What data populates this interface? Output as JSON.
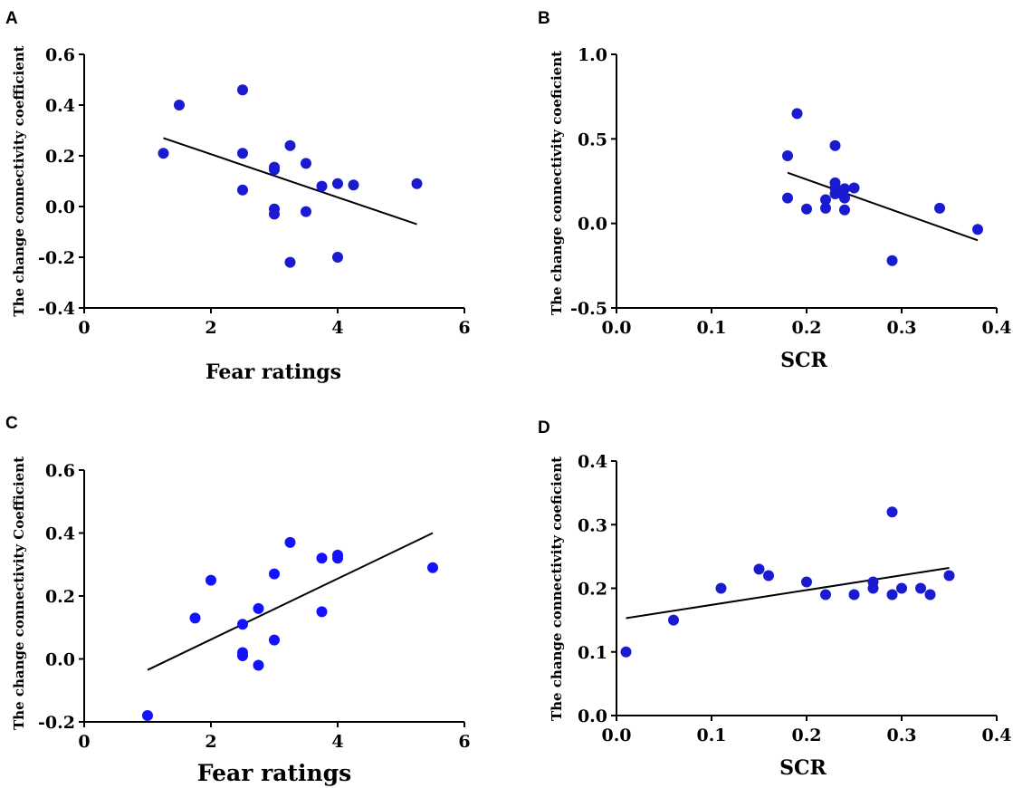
{
  "chart_data": [
    {
      "panel": "A",
      "type": "scatter",
      "xlabel": "Fear ratings",
      "ylabel": "The change connectivity coefficient",
      "xlim": [
        0,
        6
      ],
      "ylim": [
        -0.4,
        0.6
      ],
      "xticks": [
        "0",
        "2",
        "4",
        "6"
      ],
      "yticks": [
        "-0.4",
        "-0.2",
        "0.0",
        "0.2",
        "0.4",
        "0.6"
      ],
      "points": [
        {
          "x": 1.25,
          "y": 0.21
        },
        {
          "x": 1.5,
          "y": 0.4
        },
        {
          "x": 2.5,
          "y": 0.46
        },
        {
          "x": 2.5,
          "y": 0.21
        },
        {
          "x": 2.5,
          "y": 0.065
        },
        {
          "x": 3.0,
          "y": 0.155
        },
        {
          "x": 3.0,
          "y": 0.145
        },
        {
          "x": 3.0,
          "y": -0.01
        },
        {
          "x": 3.0,
          "y": -0.03
        },
        {
          "x": 3.25,
          "y": 0.24
        },
        {
          "x": 3.25,
          "y": -0.22
        },
        {
          "x": 3.5,
          "y": 0.17
        },
        {
          "x": 3.5,
          "y": -0.02
        },
        {
          "x": 3.75,
          "y": 0.08
        },
        {
          "x": 4.0,
          "y": 0.09
        },
        {
          "x": 4.0,
          "y": -0.2
        },
        {
          "x": 4.25,
          "y": 0.085
        },
        {
          "x": 5.25,
          "y": 0.09
        }
      ],
      "fit_line": [
        {
          "x": 1.25,
          "y": 0.27
        },
        {
          "x": 5.25,
          "y": -0.07
        }
      ],
      "point_color": "#1a1ad0"
    },
    {
      "panel": "B",
      "type": "scatter",
      "xlabel": "SCR",
      "ylabel": "The change connectivity coeficient",
      "xlim": [
        0,
        0.4
      ],
      "ylim": [
        -0.5,
        1.0
      ],
      "xticks": [
        "0.0",
        "0.1",
        "0.2",
        "0.3",
        "0.4"
      ],
      "yticks": [
        "-0.5",
        "0.0",
        "0.5",
        "1.0"
      ],
      "points": [
        {
          "x": 0.18,
          "y": 0.4
        },
        {
          "x": 0.18,
          "y": 0.15
        },
        {
          "x": 0.19,
          "y": 0.65
        },
        {
          "x": 0.2,
          "y": 0.085
        },
        {
          "x": 0.22,
          "y": 0.14
        },
        {
          "x": 0.22,
          "y": 0.09
        },
        {
          "x": 0.23,
          "y": 0.46
        },
        {
          "x": 0.23,
          "y": 0.24
        },
        {
          "x": 0.23,
          "y": 0.21
        },
        {
          "x": 0.23,
          "y": 0.175
        },
        {
          "x": 0.235,
          "y": 0.18
        },
        {
          "x": 0.24,
          "y": 0.205
        },
        {
          "x": 0.24,
          "y": 0.15
        },
        {
          "x": 0.24,
          "y": 0.08
        },
        {
          "x": 0.25,
          "y": 0.21
        },
        {
          "x": 0.29,
          "y": -0.22
        },
        {
          "x": 0.34,
          "y": 0.09
        },
        {
          "x": 0.38,
          "y": -0.035
        }
      ],
      "fit_line": [
        {
          "x": 0.18,
          "y": 0.3
        },
        {
          "x": 0.38,
          "y": -0.1
        }
      ],
      "point_color": "#1a1ad0"
    },
    {
      "panel": "C",
      "type": "scatter",
      "xlabel": "Fear ratings",
      "ylabel": "The change connectivity Coefficient",
      "xlim": [
        0,
        6
      ],
      "ylim": [
        -0.2,
        0.6
      ],
      "xticks": [
        "0",
        "2",
        "4",
        "6"
      ],
      "yticks": [
        "-0.2",
        "0.0",
        "0.2",
        "0.4",
        "0.6"
      ],
      "points": [
        {
          "x": 1.0,
          "y": -0.18
        },
        {
          "x": 1.75,
          "y": 0.13
        },
        {
          "x": 2.0,
          "y": 0.25
        },
        {
          "x": 2.5,
          "y": 0.11
        },
        {
          "x": 2.5,
          "y": 0.02
        },
        {
          "x": 2.5,
          "y": 0.01
        },
        {
          "x": 2.75,
          "y": 0.16
        },
        {
          "x": 2.75,
          "y": -0.02
        },
        {
          "x": 3.0,
          "y": 0.27
        },
        {
          "x": 3.0,
          "y": 0.06
        },
        {
          "x": 3.25,
          "y": 0.37
        },
        {
          "x": 3.75,
          "y": 0.32
        },
        {
          "x": 3.75,
          "y": 0.15
        },
        {
          "x": 4.0,
          "y": 0.33
        },
        {
          "x": 4.0,
          "y": 0.32
        },
        {
          "x": 5.5,
          "y": 0.29
        }
      ],
      "fit_line": [
        {
          "x": 1.0,
          "y": -0.035
        },
        {
          "x": 5.5,
          "y": 0.4
        }
      ],
      "point_color": "#1212ff"
    },
    {
      "panel": "D",
      "type": "scatter",
      "xlabel": "SCR",
      "ylabel": "The change connectivity coeficient",
      "xlim": [
        0,
        0.4
      ],
      "ylim": [
        0,
        0.4
      ],
      "xticks": [
        "0.0",
        "0.1",
        "0.2",
        "0.3",
        "0.4"
      ],
      "yticks": [
        "0.0",
        "0.1",
        "0.2",
        "0.3",
        "0.4"
      ],
      "points": [
        {
          "x": 0.01,
          "y": 0.1
        },
        {
          "x": 0.06,
          "y": 0.15
        },
        {
          "x": 0.11,
          "y": 0.2
        },
        {
          "x": 0.15,
          "y": 0.23
        },
        {
          "x": 0.16,
          "y": 0.22
        },
        {
          "x": 0.2,
          "y": 0.21
        },
        {
          "x": 0.22,
          "y": 0.19
        },
        {
          "x": 0.25,
          "y": 0.19
        },
        {
          "x": 0.27,
          "y": 0.21
        },
        {
          "x": 0.27,
          "y": 0.2
        },
        {
          "x": 0.29,
          "y": 0.32
        },
        {
          "x": 0.29,
          "y": 0.19
        },
        {
          "x": 0.3,
          "y": 0.2
        },
        {
          "x": 0.32,
          "y": 0.2
        },
        {
          "x": 0.33,
          "y": 0.19
        },
        {
          "x": 0.35,
          "y": 0.22
        }
      ],
      "fit_line": [
        {
          "x": 0.01,
          "y": 0.153
        },
        {
          "x": 0.35,
          "y": 0.232
        }
      ],
      "point_color": "#1a1ad0"
    }
  ]
}
